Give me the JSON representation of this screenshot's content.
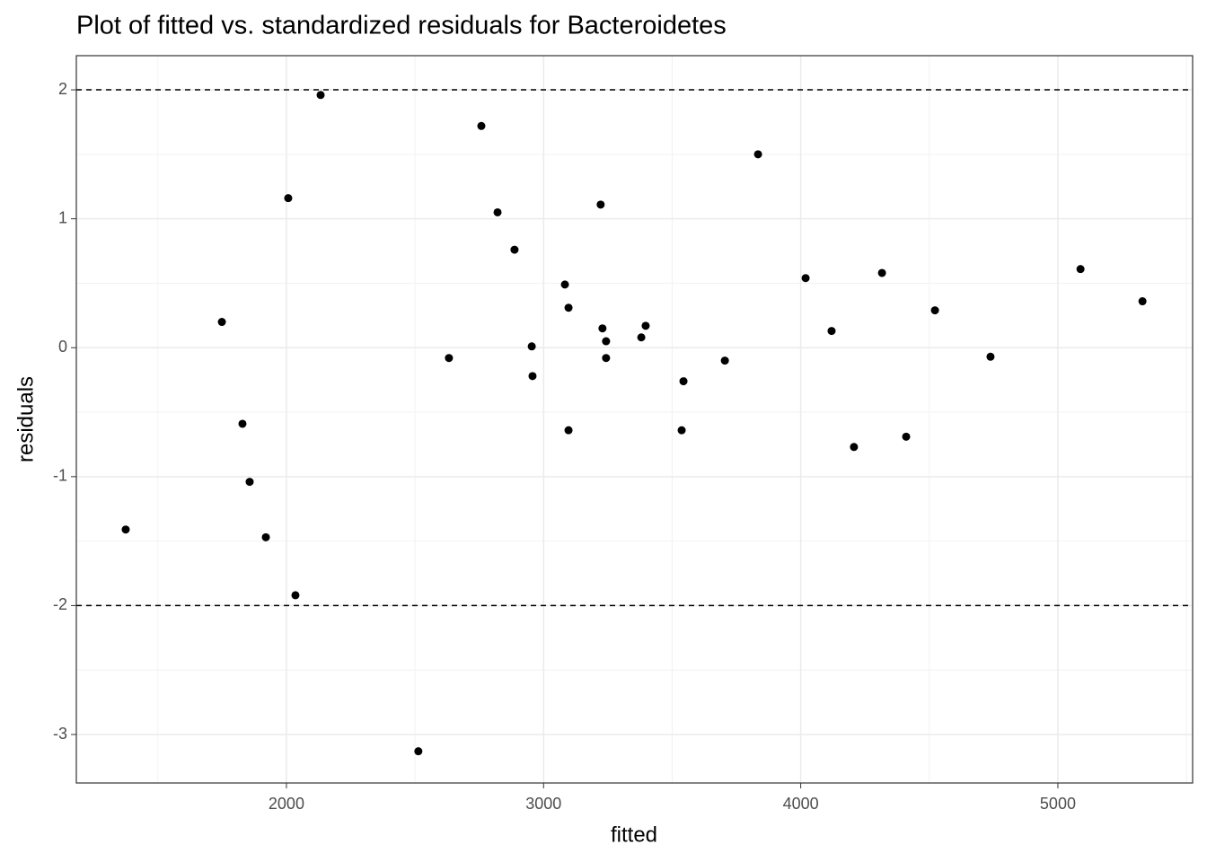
{
  "chart_data": {
    "type": "scatter",
    "title": "Plot of fitted vs. standardized residuals for Bacteroidetes",
    "x_label": "fitted",
    "y_label": "residuals",
    "xlim": [
      1183,
      5524
    ],
    "ylim": [
      -3.376,
      2.265
    ],
    "xticks": [
      2000,
      3000,
      4000,
      5000
    ],
    "yticks": [
      -3,
      -2,
      -1,
      0,
      1,
      2
    ],
    "grid": true,
    "color": "#000000",
    "reference_lines": [
      2,
      -2
    ],
    "x": [
      1375,
      1749,
      1829,
      1857,
      1920,
      2007,
      2035,
      2133,
      2513,
      2632,
      2758,
      2821,
      2887,
      2954,
      2957,
      3083,
      3097,
      3097,
      3222,
      3229,
      3243,
      3243,
      3380,
      3397,
      3537,
      3544,
      3705,
      3834,
      4019,
      4120,
      4207,
      4316,
      4410,
      4522,
      4738,
      5088,
      5329
    ],
    "values": [
      -1.41,
      0.2,
      -0.59,
      -1.04,
      -1.47,
      1.16,
      -1.92,
      1.96,
      -3.13,
      -0.08,
      1.72,
      1.05,
      0.76,
      0.01,
      -0.22,
      0.49,
      0.31,
      -0.64,
      1.11,
      0.15,
      0.05,
      -0.08,
      0.08,
      0.17,
      -0.64,
      -0.26,
      -0.1,
      1.5,
      0.54,
      0.13,
      -0.77,
      0.58,
      -0.69,
      0.29,
      -0.07,
      0.61,
      0.36
    ]
  }
}
